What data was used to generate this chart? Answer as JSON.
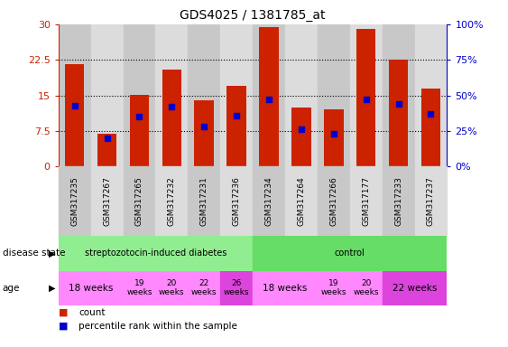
{
  "title": "GDS4025 / 1381785_at",
  "samples": [
    "GSM317235",
    "GSM317267",
    "GSM317265",
    "GSM317232",
    "GSM317231",
    "GSM317236",
    "GSM317234",
    "GSM317264",
    "GSM317266",
    "GSM317177",
    "GSM317233",
    "GSM317237"
  ],
  "counts": [
    21.5,
    7.0,
    15.2,
    20.5,
    14.0,
    17.0,
    29.5,
    12.5,
    12.0,
    29.0,
    22.5,
    16.5
  ],
  "percentiles": [
    43,
    20,
    35,
    42,
    28,
    36,
    47,
    26,
    23,
    47,
    44,
    37
  ],
  "ymax": 30,
  "yticks": [
    0,
    7.5,
    15,
    22.5,
    30
  ],
  "right_yticks": [
    0,
    25,
    50,
    75,
    100
  ],
  "bar_color": "#CC2200",
  "percentile_color": "#0000CC",
  "bg_color": "#FFFFFF",
  "tick_label_color_left": "#CC2200",
  "tick_label_color_right": "#0000CC",
  "ds_strep_color": "#90EE90",
  "ds_control_color": "#66DD66",
  "age_pink": "#FF88FF",
  "age_purple": "#DD44DD",
  "grey_even": "#C8C8C8",
  "grey_odd": "#DCDCDC"
}
